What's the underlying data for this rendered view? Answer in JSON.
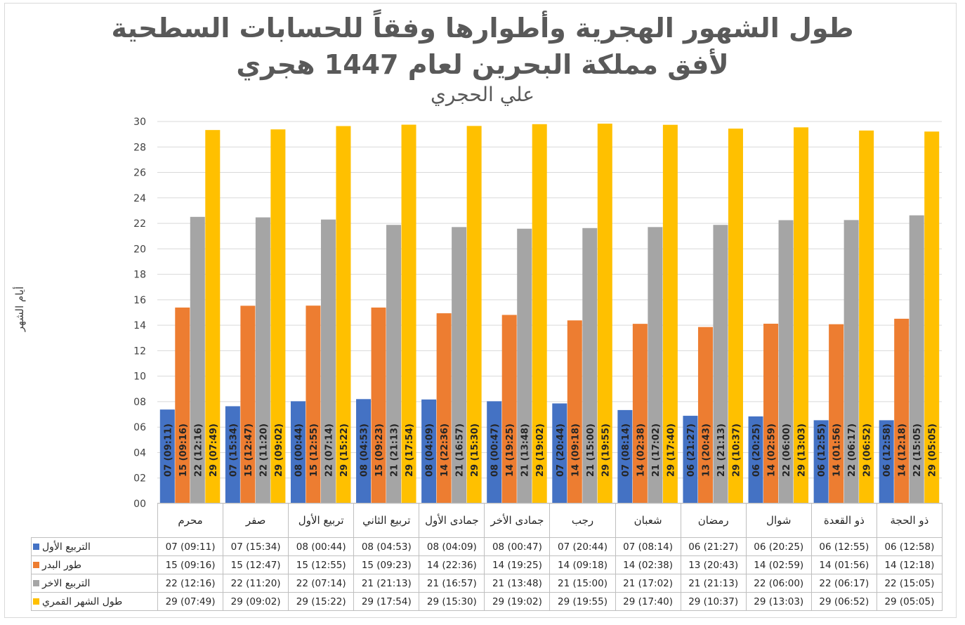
{
  "chart_data": {
    "type": "bar",
    "title_line1": "طول الشهور الهجرية وأطوارها وفقاً للحسابات السطحية",
    "title_line2": "لأفق مملكة البحرين لعام 1447 هجري",
    "subtitle": "علي الحجري",
    "ylabel": "أيام الشهر",
    "ylim": [
      0,
      30
    ],
    "yticks": [
      "00",
      "02",
      "04",
      "06",
      "08",
      "10",
      "12",
      "14",
      "16",
      "18",
      "20",
      "22",
      "24",
      "26",
      "28",
      "30"
    ],
    "grid": true,
    "categories": [
      "محرم",
      "صفر",
      "تربيع الأول",
      "تربيع الثاني",
      "جمادى الأول",
      "جمادى الأخر",
      "رجب",
      "شعبان",
      "رمضان",
      "شوال",
      "ذو القعدة",
      "ذو الحجة"
    ],
    "series": [
      {
        "name": "التربيع الأول",
        "color": "#4472c4",
        "values": [
          7.38,
          7.64,
          8.03,
          8.2,
          8.17,
          8.03,
          7.86,
          7.34,
          6.89,
          6.84,
          6.54,
          6.54
        ],
        "labels": [
          "07 (09:11)",
          "07 (15:34)",
          "08 (00:44)",
          "08 (04:53)",
          "08 (04:09)",
          "08 (00:47)",
          "07 (20:44)",
          "07 (08:14)",
          "06 (21:27)",
          "06 (20:25)",
          "06 (12:55)",
          "06 (12:58)"
        ]
      },
      {
        "name": "طور البدر",
        "color": "#ed7d31",
        "values": [
          15.39,
          15.53,
          15.54,
          15.39,
          14.94,
          14.81,
          14.38,
          14.11,
          13.86,
          14.12,
          14.08,
          14.51
        ],
        "labels": [
          "15 (09:16)",
          "15 (12:47)",
          "15 (12:55)",
          "15 (09:23)",
          "14 (22:36)",
          "14 (19:25)",
          "14 (09:18)",
          "14 (02:38)",
          "13 (20:43)",
          "14 (02:59)",
          "14 (01:56)",
          "14 (12:18)"
        ]
      },
      {
        "name": "التربيع الاخر",
        "color": "#a5a5a5",
        "values": [
          22.51,
          22.47,
          22.3,
          21.88,
          21.71,
          21.58,
          21.63,
          21.71,
          21.88,
          22.25,
          22.26,
          22.63
        ],
        "labels": [
          "22 (12:16)",
          "22 (11:20)",
          "22 (07:14)",
          "21 (21:13)",
          "21 (16:57)",
          "21 (13:48)",
          "21 (15:00)",
          "21 (17:02)",
          "21 (21:13)",
          "22 (06:00)",
          "22 (06:17)",
          "22 (15:05)"
        ]
      },
      {
        "name": "طول الشهر القمري",
        "color": "#ffc000",
        "values": [
          29.33,
          29.38,
          29.64,
          29.75,
          29.65,
          29.79,
          29.83,
          29.74,
          29.44,
          29.54,
          29.29,
          29.21
        ],
        "labels": [
          "29 (07:49)",
          "29 (09:02)",
          "29 (15:22)",
          "29 (17:54)",
          "29 (15:30)",
          "29 (19:02)",
          "29 (19:55)",
          "29 (17:40)",
          "29 (10:37)",
          "29 (13:03)",
          "29 (06:52)",
          "29 (05:05)"
        ]
      }
    ]
  }
}
